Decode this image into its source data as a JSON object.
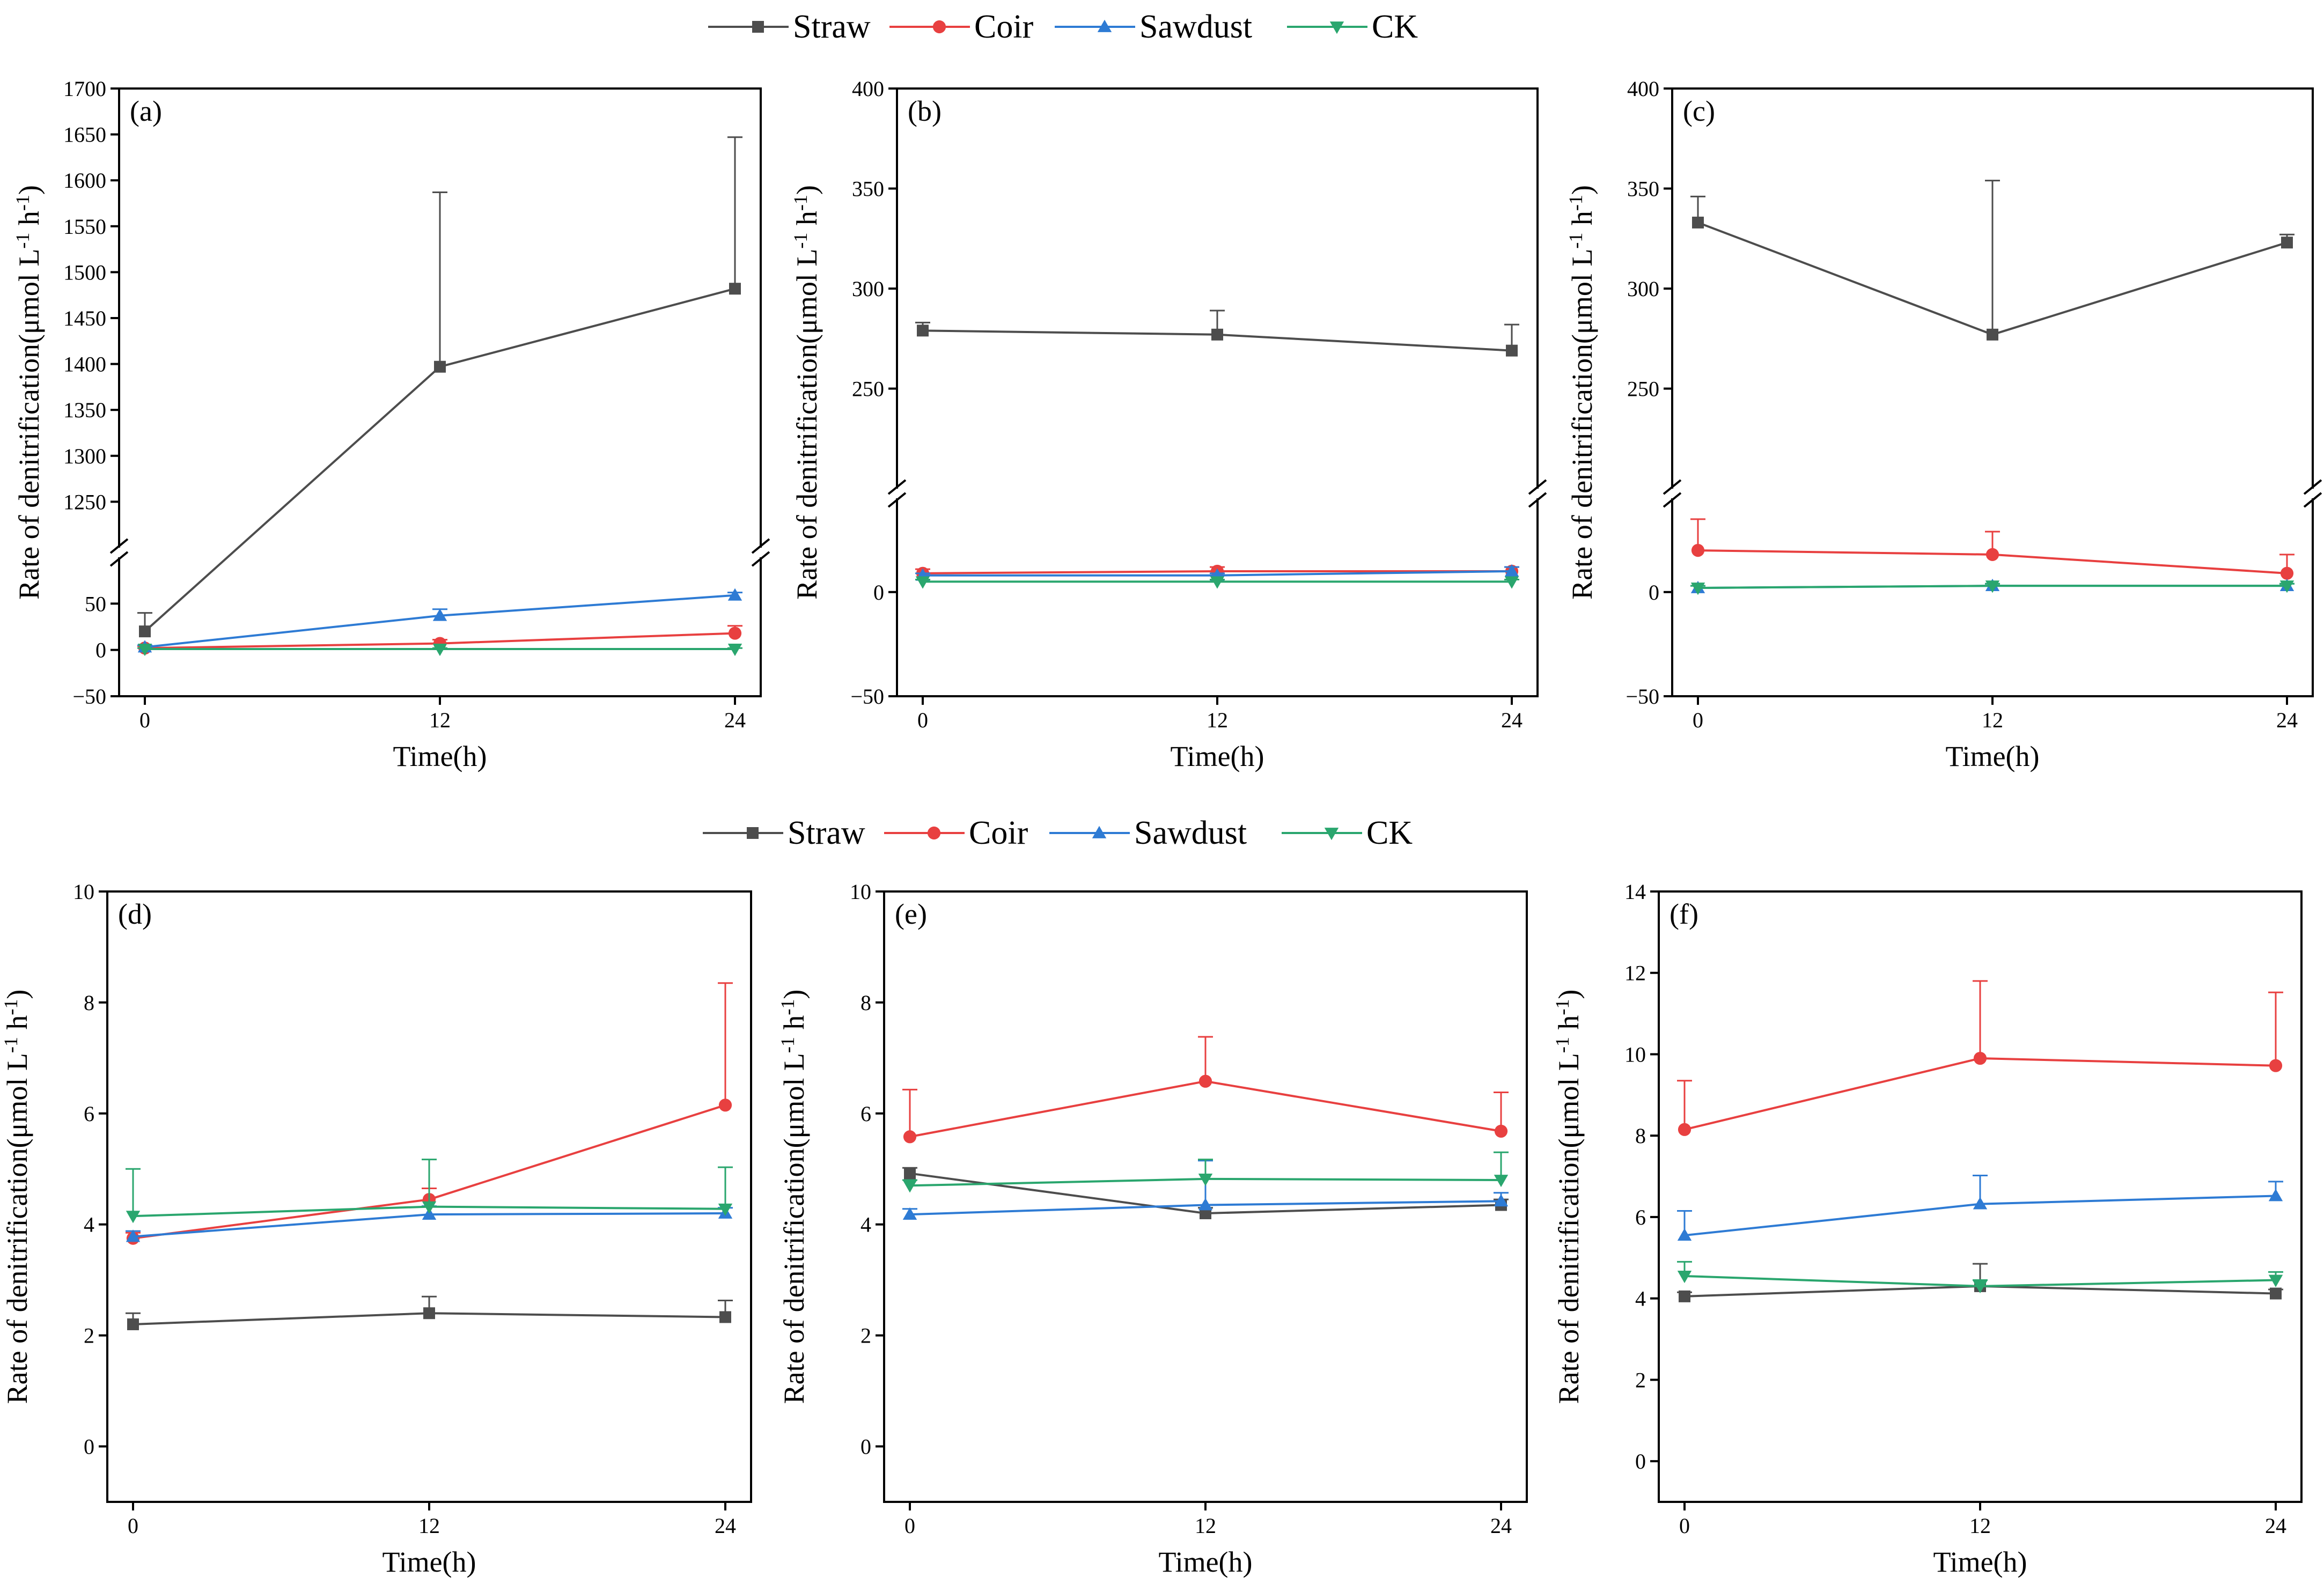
{
  "series_colors": {
    "Straw": "#4d4d4d",
    "Coir": "#e84040",
    "Sawdust": "#2e7bd4",
    "CK": "#2aa66e"
  },
  "legends": [
    {
      "entries": [
        {
          "name": "Straw",
          "marker": "square"
        },
        {
          "name": "Coir",
          "marker": "circle"
        },
        {
          "name": "Sawdust",
          "marker": "triangle-up"
        },
        {
          "name": "CK",
          "marker": "triangle-down"
        }
      ]
    },
    {
      "entries": [
        {
          "name": "Straw",
          "marker": "square"
        },
        {
          "name": "Coir",
          "marker": "circle"
        },
        {
          "name": "Sawdust",
          "marker": "triangle-up"
        },
        {
          "name": "CK",
          "marker": "triangle-down"
        }
      ]
    }
  ],
  "chart_data": [
    {
      "panel": "(a)",
      "type": "line",
      "broken_axis": true,
      "xlabel": "Time(h)",
      "ylabel_main": "Rate of denitrification(μmol L",
      "ylabel_tail": "h",
      "x": [
        0,
        12,
        24
      ],
      "xticks": [
        "0",
        "12",
        "24"
      ],
      "lower": {
        "ylim": [
          -50,
          100
        ],
        "ticks": [
          -50,
          0,
          50
        ]
      },
      "upper": {
        "ylim": [
          1200,
          1700
        ],
        "ticks": [
          1250,
          1300,
          1350,
          1400,
          1450,
          1500,
          1550,
          1600,
          1650,
          1700
        ]
      },
      "series": [
        {
          "name": "Straw",
          "values": [
            20,
            1397,
            1482
          ],
          "err": [
            20,
            190,
            165
          ]
        },
        {
          "name": "Coir",
          "values": [
            2,
            7,
            18
          ],
          "err": [
            2,
            4,
            8
          ]
        },
        {
          "name": "Sawdust",
          "values": [
            3,
            37,
            59
          ],
          "err": [
            2,
            7,
            3
          ]
        },
        {
          "name": "CK",
          "values": [
            1,
            1,
            1
          ],
          "err": [
            1,
            1,
            1
          ]
        }
      ]
    },
    {
      "panel": "(b)",
      "type": "line",
      "broken_axis": true,
      "xlabel": "Time(h)",
      "ylabel_main": "Rate of denitrification(μmol L",
      "ylabel_tail": "h",
      "x": [
        0,
        12,
        24
      ],
      "xticks": [
        "0",
        "12",
        "24"
      ],
      "lower": {
        "ylim": [
          -50,
          45
        ],
        "ticks": [
          -50,
          0
        ]
      },
      "upper": {
        "ylim": [
          200,
          400
        ],
        "ticks": [
          250,
          300,
          350,
          400
        ]
      },
      "series": [
        {
          "name": "Straw",
          "values": [
            279,
            277,
            269
          ],
          "err": [
            4,
            12,
            13
          ]
        },
        {
          "name": "Coir",
          "values": [
            9,
            10,
            10
          ],
          "err": [
            2,
            2,
            2
          ]
        },
        {
          "name": "Sawdust",
          "values": [
            8,
            8,
            10
          ],
          "err": [
            1,
            1,
            2
          ]
        },
        {
          "name": "CK",
          "values": [
            5,
            5,
            5
          ],
          "err": [
            1,
            1,
            1
          ]
        }
      ]
    },
    {
      "panel": "(c)",
      "type": "line",
      "broken_axis": true,
      "xlabel": "Time(h)",
      "ylabel_main": "Rate of denitrification(μmol L",
      "ylabel_tail": "h",
      "x": [
        0,
        12,
        24
      ],
      "xticks": [
        "0",
        "12",
        "24"
      ],
      "lower": {
        "ylim": [
          -50,
          45
        ],
        "ticks": [
          -50,
          0
        ]
      },
      "upper": {
        "ylim": [
          200,
          400
        ],
        "ticks": [
          250,
          300,
          350,
          400
        ]
      },
      "series": [
        {
          "name": "Straw",
          "values": [
            333,
            277,
            323
          ],
          "err": [
            13,
            77,
            4
          ]
        },
        {
          "name": "Coir",
          "values": [
            20,
            18,
            9
          ],
          "err": [
            15,
            11,
            9
          ]
        },
        {
          "name": "Sawdust",
          "values": [
            2,
            3,
            3
          ],
          "err": [
            1,
            1,
            1
          ]
        },
        {
          "name": "CK",
          "values": [
            2,
            3,
            3
          ],
          "err": [
            1,
            1,
            1
          ]
        }
      ]
    },
    {
      "panel": "(d)",
      "type": "line",
      "broken_axis": false,
      "xlabel": "Time(h)",
      "ylabel_main": "Rate of denitrification(μmol L",
      "ylabel_tail": "h",
      "x": [
        0,
        12,
        24
      ],
      "xticks": [
        "0",
        "12",
        "24"
      ],
      "ylim": [
        -1,
        10
      ],
      "yticks": [
        0,
        2,
        4,
        6,
        8,
        10
      ],
      "series": [
        {
          "name": "Straw",
          "values": [
            2.2,
            2.4,
            2.33
          ],
          "err": [
            0.2,
            0.3,
            0.3
          ]
        },
        {
          "name": "Coir",
          "values": [
            3.75,
            4.45,
            6.15
          ],
          "err": [
            0.1,
            0.2,
            2.2
          ]
        },
        {
          "name": "Sawdust",
          "values": [
            3.78,
            4.18,
            4.2
          ],
          "err": [
            0.1,
            0.15,
            0.1
          ]
        },
        {
          "name": "CK",
          "values": [
            4.15,
            4.32,
            4.28
          ],
          "err": [
            0.85,
            0.85,
            0.75
          ]
        }
      ]
    },
    {
      "panel": "(e)",
      "type": "line",
      "broken_axis": false,
      "xlabel": "Time(h)",
      "ylabel_main": "Rate of denitrification(μmol L",
      "ylabel_tail": "h",
      "x": [
        0,
        12,
        24
      ],
      "xticks": [
        "0",
        "12",
        "24"
      ],
      "ylim": [
        -1,
        10
      ],
      "yticks": [
        0,
        2,
        4,
        6,
        8,
        10
      ],
      "series": [
        {
          "name": "Straw",
          "values": [
            4.92,
            4.2,
            4.35
          ],
          "err": [
            0.1,
            0.1,
            0.1
          ]
        },
        {
          "name": "Coir",
          "values": [
            5.58,
            6.58,
            5.68
          ],
          "err": [
            0.85,
            0.8,
            0.7
          ]
        },
        {
          "name": "Sawdust",
          "values": [
            4.18,
            4.35,
            4.42
          ],
          "err": [
            0.1,
            0.8,
            0.15
          ]
        },
        {
          "name": "CK",
          "values": [
            4.7,
            4.82,
            4.8
          ],
          "err": [
            0.1,
            0.35,
            0.5
          ]
        }
      ]
    },
    {
      "panel": "(f)",
      "type": "line",
      "broken_axis": false,
      "xlabel": "Time(h)",
      "ylabel_main": "Rate of denitrification(μmol L",
      "ylabel_tail": "h",
      "x": [
        0,
        12,
        24
      ],
      "xticks": [
        "0",
        "12",
        "24"
      ],
      "ylim": [
        -1,
        14
      ],
      "yticks": [
        0,
        2,
        4,
        6,
        8,
        10,
        12,
        14
      ],
      "series": [
        {
          "name": "Straw",
          "values": [
            4.05,
            4.3,
            4.12
          ],
          "err": [
            0.1,
            0.55,
            0.1
          ]
        },
        {
          "name": "Coir",
          "values": [
            8.15,
            9.9,
            9.72
          ],
          "err": [
            1.2,
            1.9,
            1.8
          ]
        },
        {
          "name": "Sawdust",
          "values": [
            5.55,
            6.32,
            6.52
          ],
          "err": [
            0.6,
            0.7,
            0.35
          ]
        },
        {
          "name": "CK",
          "values": [
            4.55,
            4.3,
            4.45
          ],
          "err": [
            0.35,
            0.15,
            0.2
          ]
        }
      ]
    }
  ]
}
